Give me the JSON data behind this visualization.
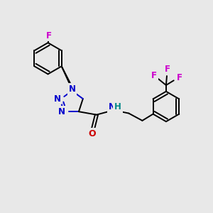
{
  "background_color": "#e8e8e8",
  "bond_color": "#000000",
  "nitrogen_color": "#0000cc",
  "oxygen_color": "#cc0000",
  "fluorine_color": "#cc00cc",
  "hydrogen_color": "#008888",
  "figsize": [
    3.0,
    3.0
  ],
  "dpi": 100,
  "xlim": [
    0,
    10
  ],
  "ylim": [
    0,
    10
  ]
}
